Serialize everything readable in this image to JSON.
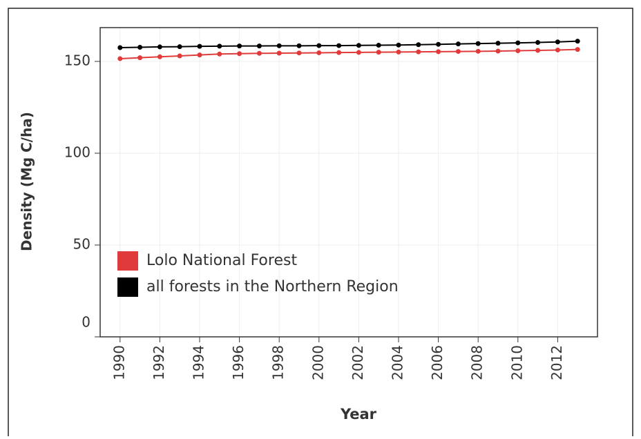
{
  "chart_data": {
    "type": "line",
    "x_label": "Year",
    "y_label": "Density (Mg C/ha)",
    "x": [
      1990,
      1991,
      1992,
      1993,
      1994,
      1995,
      1996,
      1997,
      1998,
      1999,
      2000,
      2001,
      2002,
      2003,
      2004,
      2005,
      2006,
      2007,
      2008,
      2009,
      2010,
      2011,
      2012,
      2013
    ],
    "series": [
      {
        "name": "Lolo National Forest",
        "color": "#e03a3a",
        "values": [
          151.5,
          152,
          152.5,
          153,
          153.5,
          154,
          154.2,
          154.4,
          154.5,
          154.6,
          154.7,
          154.8,
          154.9,
          155,
          155.1,
          155.2,
          155.3,
          155.4,
          155.5,
          155.6,
          155.8,
          156,
          156.2,
          156.5
        ]
      },
      {
        "name": "all forests in the Northern Region",
        "color": "#000000",
        "values": [
          157.5,
          157.7,
          157.9,
          158,
          158.2,
          158.3,
          158.4,
          158.4,
          158.5,
          158.5,
          158.6,
          158.6,
          158.7,
          158.8,
          158.9,
          159.1,
          159.3,
          159.5,
          159.7,
          159.9,
          160.1,
          160.3,
          160.6,
          161
        ]
      }
    ],
    "xlim": [
      1989,
      2014
    ],
    "xticks": [
      1990,
      1992,
      1994,
      1996,
      1998,
      2000,
      2002,
      2004,
      2006,
      2008,
      2010,
      2012
    ],
    "ylim": [
      0,
      168.4
    ],
    "yticks": [
      0,
      50,
      100,
      150
    ],
    "grid": true,
    "legend": "lower left"
  }
}
